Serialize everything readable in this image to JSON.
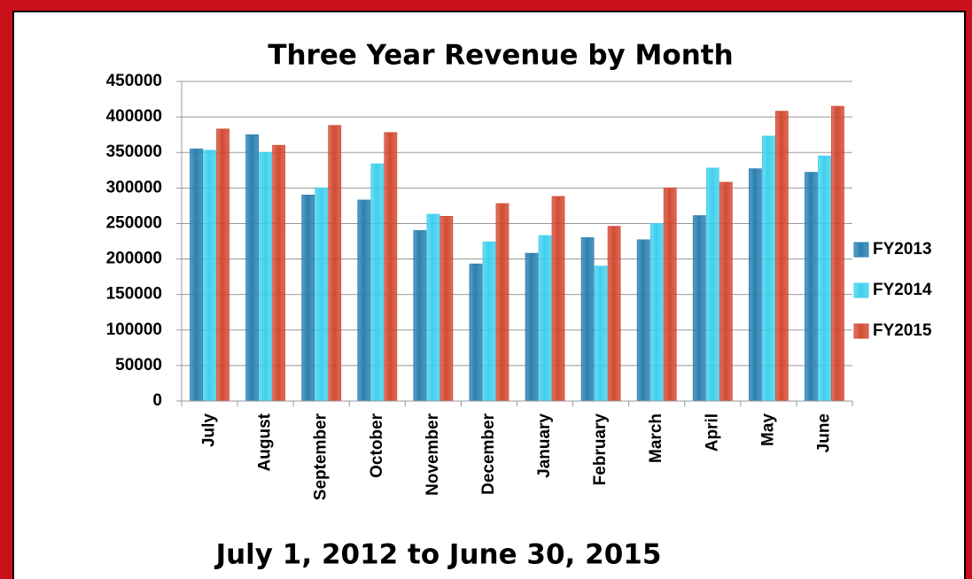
{
  "chart_data": {
    "type": "bar",
    "title": "Three Year Revenue by Month",
    "subtitle": "July 1, 2012 to June 30, 2015",
    "categories": [
      "July",
      "August",
      "September",
      "October",
      "November",
      "December",
      "January",
      "February",
      "March",
      "April",
      "May",
      "June"
    ],
    "series": [
      {
        "name": "FY2013",
        "color": "#2a7fb0",
        "values": [
          355000,
          375000,
          290000,
          283000,
          240000,
          193000,
          208000,
          230000,
          227000,
          261000,
          327000,
          322000
        ]
      },
      {
        "name": "FY2014",
        "color": "#3fd0ee",
        "values": [
          353000,
          350000,
          300000,
          334000,
          263000,
          224000,
          233000,
          190000,
          250000,
          328000,
          373000,
          345000
        ]
      },
      {
        "name": "FY2015",
        "color": "#d24a33",
        "values": [
          383000,
          360000,
          388000,
          378000,
          260000,
          278000,
          288000,
          246000,
          300000,
          308000,
          408000,
          415000
        ]
      }
    ],
    "ylim": [
      0,
      450000
    ],
    "yticks": [
      0,
      50000,
      100000,
      150000,
      200000,
      250000,
      300000,
      350000,
      400000,
      450000
    ],
    "grid": true,
    "legend": "right"
  }
}
